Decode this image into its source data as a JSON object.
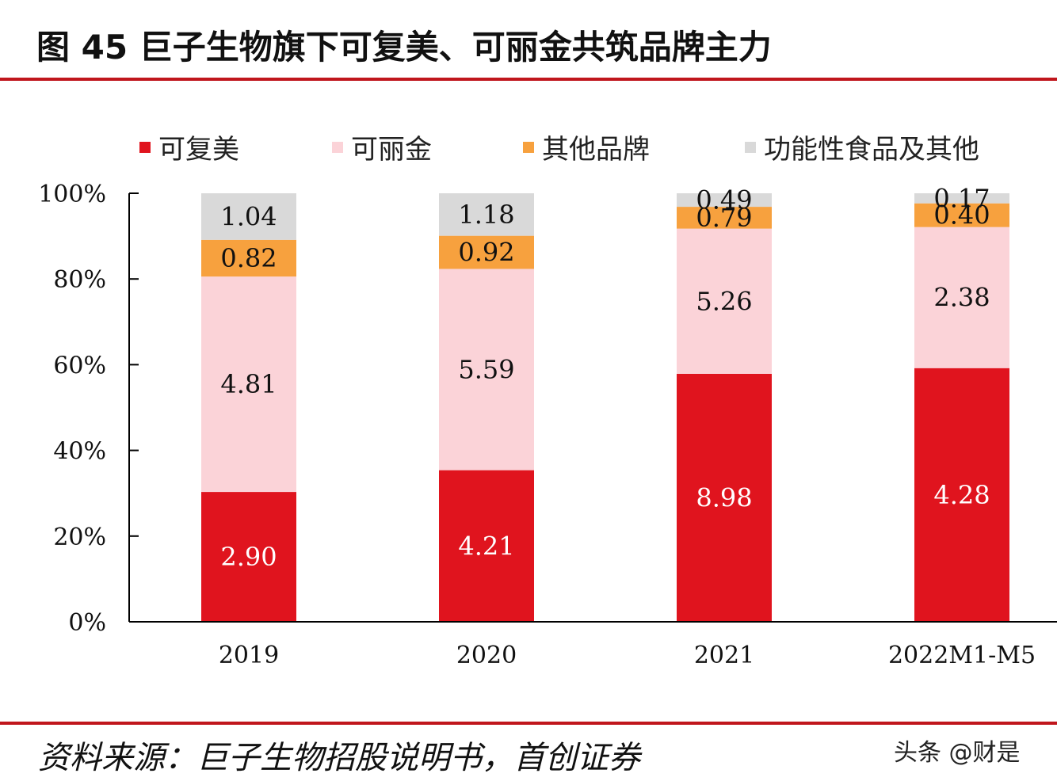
{
  "header": {
    "title": "图 45 巨子生物旗下可复美、可丽金共筑品牌主力"
  },
  "footer": {
    "source": "资料来源：巨子生物招股说明书，首创证券",
    "watermark": "头条 @财是"
  },
  "chart_data": {
    "type": "bar",
    "stacked": true,
    "normalized_percent": true,
    "categories": [
      "2019",
      "2020",
      "2021",
      "2022M1-M5"
    ],
    "series": [
      {
        "name": "可复美",
        "color": "#e0141e",
        "label_color": "#ffffff",
        "values": [
          2.9,
          4.21,
          8.98,
          4.28
        ],
        "labels": [
          "2.90",
          "4.21",
          "8.98",
          "4.28"
        ]
      },
      {
        "name": "可丽金",
        "color": "#fbd3d8",
        "label_color": "#111111",
        "values": [
          4.81,
          5.59,
          5.26,
          2.38
        ],
        "labels": [
          "4.81",
          "5.59",
          "5.26",
          "2.38"
        ]
      },
      {
        "name": "其他品牌",
        "color": "#f7a13e",
        "label_color": "#111111",
        "values": [
          0.82,
          0.92,
          0.79,
          0.4
        ],
        "labels": [
          "0.82",
          "0.92",
          "0.79",
          "0.40"
        ]
      },
      {
        "name": "功能性食品及其他",
        "color": "#d9d9d9",
        "label_color": "#111111",
        "values": [
          1.04,
          1.18,
          0.49,
          0.17
        ],
        "labels": [
          "1.04",
          "1.18",
          "0.49",
          "0.17"
        ]
      }
    ],
    "yticks": [
      "0%",
      "20%",
      "40%",
      "60%",
      "80%",
      "100%"
    ],
    "ylim": [
      0,
      100
    ],
    "legend_position": "top",
    "grid": false
  }
}
